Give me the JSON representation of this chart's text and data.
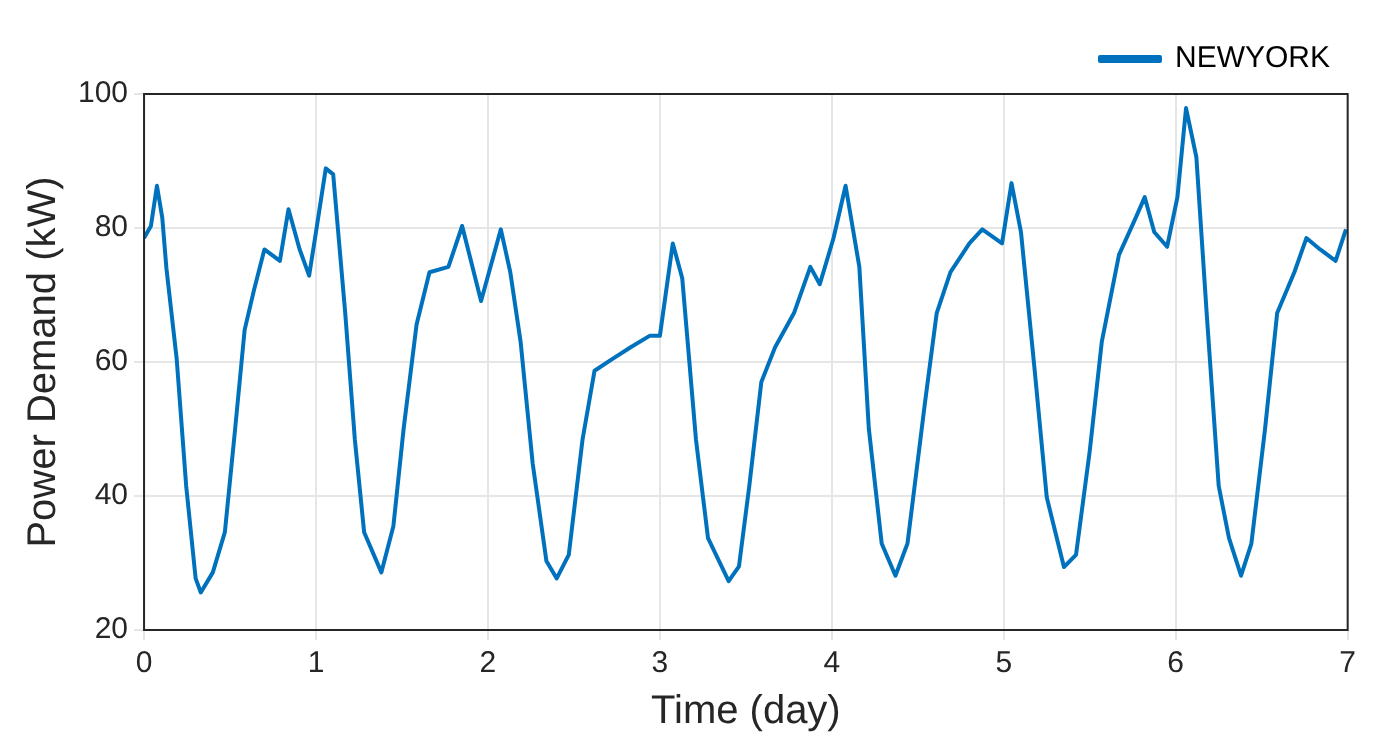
{
  "chart_data": {
    "type": "line",
    "xlabel": "Time (day)",
    "ylabel": "Power Demand (kW)",
    "xlim": [
      0,
      7
    ],
    "xticks": [
      0,
      1,
      2,
      3,
      4,
      5,
      6,
      7
    ],
    "ylim": [
      20,
      100
    ],
    "yticks": [
      20,
      40,
      60,
      80,
      100
    ],
    "grid": true,
    "legend": "top right",
    "marker": "none",
    "line_style": "solid",
    "series": [
      {
        "name": "NEWYORK",
        "color": "#0072bd",
        "x": [
          0,
          0.04,
          0.075,
          0.106,
          0.13,
          0.19,
          0.245,
          0.3,
          0.33,
          0.4,
          0.47,
          0.53,
          0.585,
          0.64,
          0.7,
          0.79,
          0.84,
          0.905,
          0.96,
          1.0,
          1.057,
          1.1,
          1.17,
          1.226,
          1.28,
          1.38,
          1.45,
          1.51,
          1.585,
          1.66,
          1.77,
          1.85,
          1.96,
          2.075,
          2.13,
          2.19,
          2.26,
          2.34,
          2.4,
          2.47,
          2.55,
          2.62,
          2.72,
          2.83,
          2.94,
          3.0,
          3.075,
          3.13,
          3.21,
          3.28,
          3.4,
          3.46,
          3.52,
          3.59,
          3.67,
          3.78,
          3.875,
          3.93,
          4.01,
          4.08,
          4.16,
          4.215,
          4.29,
          4.37,
          4.44,
          4.54,
          4.61,
          4.69,
          4.8,
          4.875,
          4.99,
          5.045,
          5.1,
          5.18,
          5.25,
          5.35,
          5.42,
          5.5,
          5.57,
          5.67,
          5.76,
          5.82,
          5.875,
          5.95,
          6.01,
          6.06,
          6.12,
          6.18,
          6.25,
          6.31,
          6.38,
          6.44,
          6.52,
          6.59,
          6.69,
          6.76,
          6.84,
          6.93,
          6.99
        ],
        "values": [
          78.5,
          80.3,
          86.3,
          81.5,
          74,
          60.4,
          41.5,
          27.7,
          25.6,
          28.6,
          34.6,
          50.1,
          64.8,
          70.8,
          76.8,
          75.1,
          82.8,
          76.8,
          72.9,
          79.4,
          88.9,
          88,
          67.3,
          48.4,
          34.6,
          28.6,
          35.5,
          50.1,
          65.6,
          73.4,
          74.2,
          80.3,
          69.1,
          79.8,
          73.4,
          63,
          44.9,
          30.3,
          27.7,
          31.2,
          48.4,
          58.7,
          60.4,
          62.2,
          63.9,
          63.9,
          77.7,
          72.5,
          48.4,
          33.7,
          27.3,
          29.5,
          41.5,
          57,
          62.2,
          67.3,
          74.2,
          71.6,
          78.5,
          86.3,
          74.2,
          50.1,
          32.9,
          28.1,
          32.9,
          53.6,
          67.3,
          73.4,
          77.7,
          79.8,
          77.7,
          86.7,
          79.4,
          58.7,
          39.8,
          29.4,
          31.2,
          46.7,
          63,
          76,
          81.1,
          84.6,
          79.4,
          77.2,
          84.6,
          97.9,
          90.6,
          67.3,
          41.5,
          33.7,
          28.1,
          32.9,
          50.1,
          67.3,
          73.4,
          78.5,
          76.8,
          75.1,
          79.8
        ]
      }
    ]
  }
}
